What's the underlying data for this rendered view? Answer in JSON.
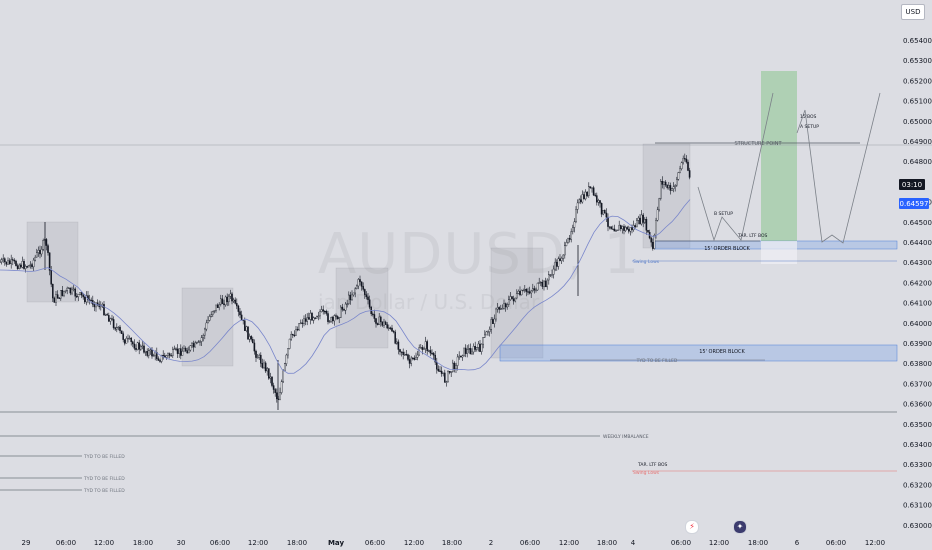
{
  "symbol_watermark": "AUDUSD, 1",
  "symbol_description": "ian Dollar / U.S. Dollar",
  "currency": "USD",
  "price_axis": {
    "ticks": [
      "0.65400",
      "0.65300",
      "0.65200",
      "0.65100",
      "0.65000",
      "0.64900",
      "0.64800",
      "0.64600",
      "0.64500",
      "0.64400",
      "0.64300",
      "0.64200",
      "0.64100",
      "0.64000",
      "0.63900",
      "0.63800",
      "0.63700",
      "0.63600",
      "0.63500",
      "0.63400",
      "0.63300",
      "0.63200",
      "0.63100",
      "0.63000"
    ],
    "countdown": "03:10",
    "last_price": "0.64597",
    "colors": {
      "last_price_bg": "#2962ff",
      "countdown_bg": "#131722"
    }
  },
  "time_axis": {
    "ticks": [
      "29",
      "06:00",
      "12:00",
      "18:00",
      "30",
      "06:00",
      "12:00",
      "18:00",
      "May",
      "06:00",
      "12:00",
      "18:00",
      "2",
      "06:00",
      "12:00",
      "18:00",
      "4",
      "06:00",
      "12:00",
      "18:00",
      "6",
      "06:00",
      "12:00"
    ],
    "bold": [
      "May"
    ]
  },
  "annotations": {
    "structure_point": "STRUCTURE POINT",
    "a_setup": "A SETUP",
    "bos_15": "15'BOS",
    "b_setup": "B SETUP",
    "tar_ltf_bos_1": "TAR. LTF BOS",
    "order_block_top": "15' ORDER BLOCK",
    "swing_label_top": "Swing Lows",
    "order_block_bottom": "15' ORDER BLOCK",
    "tyd_filled_mid": "TYD TO BE FILLED",
    "weekly_imbalance": "WEEKLY IMBALANCE",
    "tyd_filled_1": "TYD TO BE FILLED",
    "tyd_filled_2": "TYD TO BE FILLED",
    "tyd_filled_3": "TYD TO BE FILLED",
    "tar_ltf_bos_2": "TAR. LTF BOS",
    "swing_label_bottom": "Swing Lows"
  },
  "icons": [
    "lightning-icon",
    "us-flag-icon"
  ],
  "chart_data": {
    "type": "line",
    "title": "AUDUSD",
    "xlabel": "",
    "ylabel": "",
    "x": [
      "29 00:00",
      "29 06:00",
      "29 12:00",
      "29 18:00",
      "30 00:00",
      "30 06:00",
      "30 12:00",
      "30 18:00",
      "May 00:00",
      "May 06:00",
      "May 12:00",
      "May 18:00",
      "2 00:00",
      "2 06:00",
      "2 12:00",
      "2 18:00",
      "4 00:00",
      "4 06:00"
    ],
    "series": [
      {
        "name": "",
        "values": [
          0.6428,
          0.6421,
          0.6403,
          0.6384,
          0.6389,
          0.6415,
          0.6393,
          0.6402,
          0.6418,
          0.6398,
          0.6392,
          0.6378,
          0.6382,
          0.6408,
          0.6428,
          0.6453,
          0.6442,
          0.6462
        ]
      }
    ],
    "ylim": [
      0.6295,
      0.6555
    ],
    "grid": false,
    "last_price": 0.64597
  }
}
